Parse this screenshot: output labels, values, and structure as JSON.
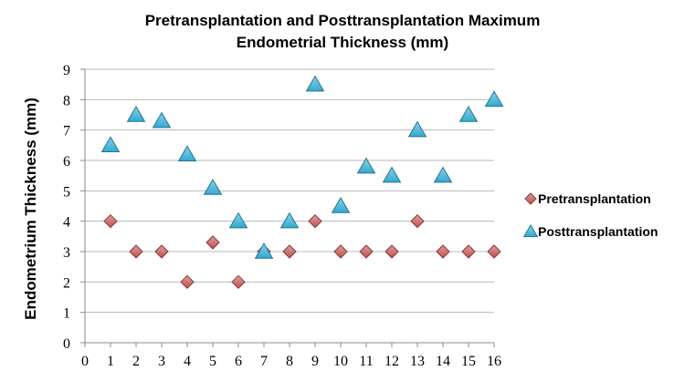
{
  "chart_data": {
    "type": "scatter",
    "title_line1": "Pretransplantation and Posttransplantation Maximum",
    "title_line2": "Endometrial Thickness (mm)",
    "xlabel": "",
    "ylabel": "Endometrium Thickness (mm)",
    "xlim": [
      0,
      16
    ],
    "ylim": [
      0,
      9
    ],
    "x_ticks": [
      "0",
      "1",
      "2",
      "3",
      "4",
      "5",
      "6",
      "7",
      "8",
      "9",
      "10",
      "11",
      "12",
      "13",
      "14",
      "15",
      "16"
    ],
    "y_ticks": [
      "0",
      "1",
      "2",
      "3",
      "4",
      "5",
      "6",
      "7",
      "8",
      "9"
    ],
    "grid": true,
    "legend_position": "right",
    "series": [
      {
        "name": "Pretransplantation",
        "marker": "diamond",
        "color": "#c0504d",
        "x": [
          1,
          2,
          3,
          4,
          5,
          6,
          7,
          8,
          9,
          10,
          11,
          12,
          13,
          14,
          15,
          16
        ],
        "values": [
          4,
          3,
          3,
          2,
          3.3,
          2,
          3,
          3,
          4,
          3,
          3,
          3,
          4,
          3,
          3,
          3
        ]
      },
      {
        "name": "Posttransplantation",
        "marker": "triangle",
        "color": "#31a9d0",
        "x": [
          1,
          2,
          3,
          4,
          5,
          6,
          7,
          8,
          9,
          10,
          11,
          12,
          13,
          14,
          15,
          16
        ],
        "values": [
          6.5,
          7.5,
          7.3,
          6.2,
          5.1,
          4,
          3,
          4,
          8.5,
          4.5,
          5.8,
          5.5,
          7,
          5.5,
          7.5,
          8
        ]
      }
    ]
  }
}
